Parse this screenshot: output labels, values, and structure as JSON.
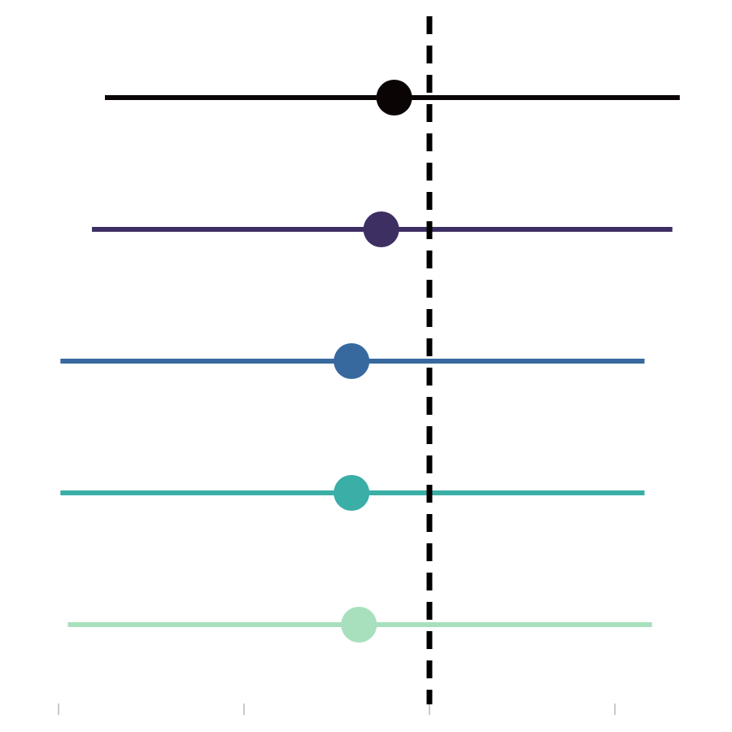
{
  "chart_data": {
    "type": "scatter",
    "subtype": "forest-plot",
    "title": "",
    "xlabel": "",
    "ylabel": "",
    "xlim": [
      -2.0,
      1.65
    ],
    "x_ticks": [
      -2,
      -1,
      0,
      1
    ],
    "x_tick_labels_visible": false,
    "reference_line": {
      "x": 0,
      "style": "dashed",
      "color": "#000000"
    },
    "grid": false,
    "legend": "none",
    "series": [
      {
        "estimate": -0.19,
        "lower": -1.75,
        "upper": 1.35,
        "color": "#0b0405"
      },
      {
        "estimate": -0.26,
        "lower": -1.82,
        "upper": 1.31,
        "color": "#3d2f62"
      },
      {
        "estimate": -0.42,
        "lower": -1.99,
        "upper": 1.16,
        "color": "#38699e"
      },
      {
        "estimate": -0.42,
        "lower": -1.99,
        "upper": 1.16,
        "color": "#3aaea7"
      },
      {
        "estimate": -0.38,
        "lower": -1.95,
        "upper": 1.2,
        "color": "#a8e0bd"
      }
    ]
  }
}
